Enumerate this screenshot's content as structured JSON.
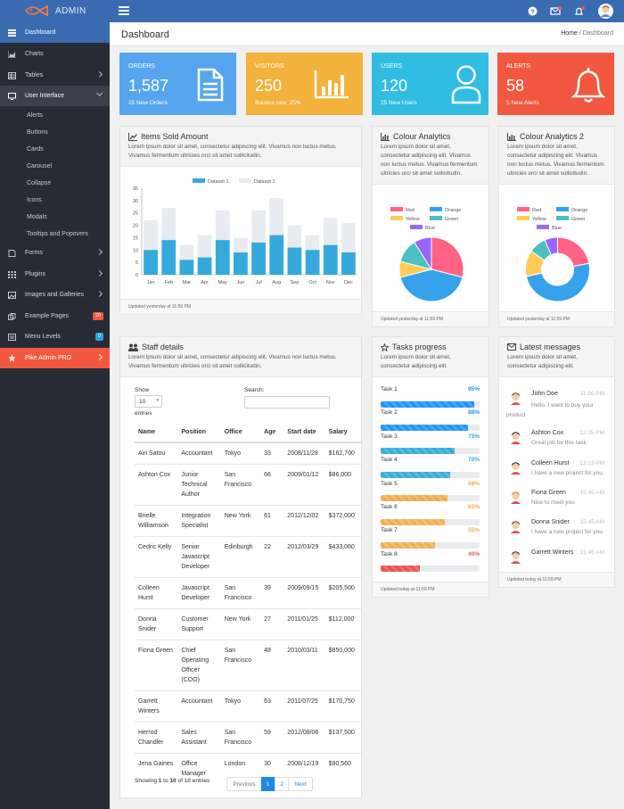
{
  "app": {
    "brand": "ADMIN"
  },
  "sidebar": {
    "items": [
      {
        "label": "Dashboard",
        "icon": "dashboard-icon"
      },
      {
        "label": "Charts",
        "icon": "area-chart-icon"
      },
      {
        "label": "Tables",
        "icon": "table-icon"
      },
      {
        "label": "User Interface",
        "icon": "laptop-icon"
      },
      {
        "label": "Forms",
        "icon": "file-icon"
      },
      {
        "label": "Plugins",
        "icon": "grid-icon"
      },
      {
        "label": "Images and Galleries",
        "icon": "image-icon"
      },
      {
        "label": "Example Pages",
        "icon": "copy-icon",
        "badge": "20"
      },
      {
        "label": "Menu Levels",
        "icon": "list-icon",
        "badge": "9"
      },
      {
        "label": "Pike Admin PRO",
        "icon": "star-icon"
      }
    ],
    "sub_items": [
      "Alerts",
      "Buttons",
      "Cards",
      "Carousel",
      "Collapse",
      "Icons",
      "Modals",
      "Tooltips and Popovers"
    ]
  },
  "header": {
    "title": "Dashboard",
    "crumb_home": "Home",
    "crumb_sep": " / ",
    "crumb_current": "Dashboard"
  },
  "tiles": [
    {
      "label": "ORDERS",
      "value": "1,587",
      "sub": "15 New Orders",
      "color": "#56a6ef"
    },
    {
      "label": "VISITORS",
      "value": "250",
      "sub": "Bounce rate: 25%",
      "color": "#f3b23c"
    },
    {
      "label": "USERS",
      "value": "120",
      "sub": "25 New Users",
      "color": "#31bde2"
    },
    {
      "label": "ALERTS",
      "value": "58",
      "sub": "5 New Alerts",
      "color": "#f2583f"
    }
  ],
  "items_sold": {
    "title": "Items Sold Amount",
    "desc": "Lorem ipsum dolor sit amet, consectetur adipiscing elit. Vivamus non luctus metus. Vivamus fermentum ultricies orci sit amet sollicitudin.",
    "footer": "Updated yesterday at 11:59 PM"
  },
  "colour1": {
    "title": "Colour Analytics",
    "desc": "Lorem ipsum dolor sit amet, consectetur adipiscing elit. Vivamus non luctus metus. Vivamus fermentum ultricies orci sit amet sollicitudin.",
    "footer": "Updated yesterday at 11:59 PM"
  },
  "colour2": {
    "title": "Colour Analytics 2",
    "desc": "Lorem ipsum dolor sit amet, consectetur adipiscing elit. Vivamus non luctus metus. Vivamus fermentum ultricies orci sit amet sollicitudin.",
    "footer": "Updated yesterday at 11:59 PM"
  },
  "chart_data": [
    {
      "type": "bar",
      "categories": [
        "Jan",
        "Feb",
        "Mar",
        "Apr",
        "May",
        "Jun",
        "Jul",
        "Aug",
        "Sep",
        "Oct",
        "Nov",
        "Dec"
      ],
      "series": [
        {
          "name": "Dataset 1",
          "values": [
            10,
            14,
            6,
            7,
            14,
            9,
            13,
            16,
            11,
            10,
            12,
            9
          ],
          "color": "#36a9dc"
        },
        {
          "name": "Dataset 2",
          "values": [
            22,
            27,
            12,
            16,
            26,
            15,
            26,
            31,
            20,
            16,
            23,
            21
          ],
          "color": "#e8ebef"
        }
      ],
      "yticks": [
        0,
        5,
        10,
        15,
        20,
        25,
        30,
        35
      ],
      "ylim": [
        0,
        35
      ],
      "stacked": false,
      "legend": "top"
    },
    {
      "type": "pie",
      "labels": [
        "Red",
        "Orange",
        "Yellow",
        "Green",
        "Blue"
      ],
      "values": [
        29,
        42,
        8,
        12,
        9
      ],
      "colors": [
        "#ff6384",
        "#36a2eb",
        "#ffcd56",
        "#4bc0c0",
        "#9966ff"
      ],
      "legend": "top"
    },
    {
      "type": "pie",
      "labels": [
        "Red",
        "Orange",
        "Yellow",
        "Green",
        "Blue"
      ],
      "values": [
        20,
        45,
        12,
        8,
        6
      ],
      "colors": [
        "#ff6384",
        "#36a2eb",
        "#ffcd56",
        "#4bc0c0",
        "#9966ff"
      ],
      "doughnut": true,
      "legend": "top"
    }
  ],
  "staff": {
    "title": "Staff details",
    "desc": "Lorem ipsum dolor sit amet, consectetur adipiscing elit. Vivamus non luctus metus. Vivamus fermentum ultricies orci sit amet sollicitudin.",
    "show_label": "Show",
    "show_value": "10",
    "entries_label": "entries",
    "search_label": "Search:",
    "columns": [
      "Name",
      "Position",
      "Office",
      "Age",
      "Start date",
      "Salary"
    ],
    "rows": [
      [
        "Airi Satou",
        "Accountant",
        "Tokyo",
        "33",
        "2008/11/28",
        "$162,700"
      ],
      [
        "Ashton Cox",
        "Junior Technical Author",
        "San Francisco",
        "66",
        "2009/01/12",
        "$86,000"
      ],
      [
        "Brielle Williamson",
        "Integration Specialist",
        "New York",
        "61",
        "2012/12/02",
        "$372,000"
      ],
      [
        "Cedric Kelly",
        "Senior Javascript Developer",
        "Edinburgh",
        "22",
        "2012/03/29",
        "$433,060"
      ],
      [
        "Colleen Hurst",
        "Javascript Developer",
        "San Francisco",
        "39",
        "2009/09/15",
        "$205,500"
      ],
      [
        "Donna Snider",
        "Customer Support",
        "New York",
        "27",
        "2011/01/25",
        "$112,000"
      ],
      [
        "Fiona Green",
        "Chief Operating Officer (COO)",
        "San Francisco",
        "48",
        "2010/03/11",
        "$850,000"
      ],
      [
        "Garrett Winters",
        "Accountant",
        "Tokyo",
        "63",
        "2011/07/25",
        "$170,750"
      ],
      [
        "Herrod Chandler",
        "Sales Assistant",
        "San Francisco",
        "59",
        "2012/08/06",
        "$137,500"
      ],
      [
        "Jena Gaines",
        "Office Manager",
        "London",
        "30",
        "2008/12/19",
        "$90,560"
      ]
    ],
    "info_pre": "Showing ",
    "info_from": "1",
    "info_mid1": " to ",
    "info_to": "10",
    "info_mid2": " of 18 entries",
    "prev": "Previous",
    "page1": "1",
    "page2": "2",
    "next": "Next"
  },
  "tasks": {
    "title": "Tasks progress",
    "desc": "Lorem ipsum dolor sit amet, consectetur adipiscing elit.",
    "items": [
      {
        "label": "Task 1",
        "pct": 95,
        "text": "95%",
        "color": "#1e90ff"
      },
      {
        "label": "Task 2",
        "pct": 88,
        "text": "88%",
        "color": "#1e90ff"
      },
      {
        "label": "Task 3",
        "pct": 75,
        "text": "75%",
        "color": "#36a9dc"
      },
      {
        "label": "Task 4",
        "pct": 70,
        "text": "70%",
        "color": "#36a9dc"
      },
      {
        "label": "Task 5",
        "pct": 68,
        "text": "68%",
        "color": "#f0ad4e"
      },
      {
        "label": "Task 6",
        "pct": 65,
        "text": "65%",
        "color": "#f0ad4e"
      },
      {
        "label": "Task 7",
        "pct": 55,
        "text": "55%",
        "color": "#f0ad4e"
      },
      {
        "label": "Task 8",
        "pct": 40,
        "text": "40%",
        "color": "#e9534f"
      }
    ],
    "footer": "Updated today at 11:59 PM"
  },
  "messages": {
    "title": "Latest messages",
    "desc": "Lorem ipsum dolor sit amet, consectetur adipiscing elit.",
    "items": [
      {
        "name": "John Doe",
        "time": "11:30 PM",
        "text": "Hello. I want to buy your product"
      },
      {
        "name": "Ashton Cox",
        "time": "12:05 PM",
        "text": "Great job for this task"
      },
      {
        "name": "Colleen Hurst",
        "time": "13:13 PM",
        "text": "I have a new project for you"
      },
      {
        "name": "Fiona Green",
        "time": "15:45 AM",
        "text": "Nice to meet you"
      },
      {
        "name": "Donna Snider",
        "time": "15:45 AM",
        "text": "I have a new project for you"
      },
      {
        "name": "Garrett Winters",
        "time": "15:45 AM",
        "text": ""
      }
    ],
    "footer": "Updated today at 11:59 PM"
  }
}
